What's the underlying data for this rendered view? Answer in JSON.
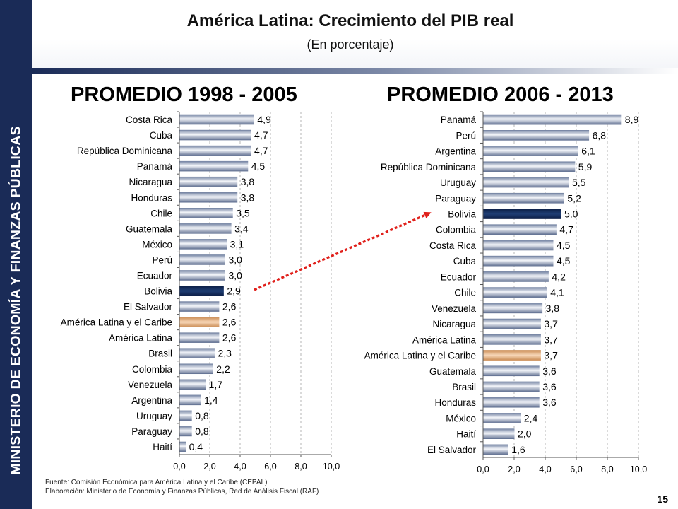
{
  "sidebar": {
    "text": "MINISTERIO DE ECONOMÍA Y FINANZAS PÚBLICAS"
  },
  "header": {
    "title": "América Latina: Crecimiento del PIB real",
    "subtitle": "(En porcentaje)"
  },
  "colors": {
    "default_bar": "#a7b4cb",
    "highlight_bolivia": "#132c5a",
    "highlight_region": "#e6b489",
    "arrow": "#e0201b",
    "sidebar": "#1a2b57"
  },
  "chart_data": [
    {
      "type": "bar",
      "orientation": "horizontal",
      "title": "PROMEDIO 1998 - 2005",
      "xlim": [
        0,
        10
      ],
      "xticks": [
        "0,0",
        "2,0",
        "4,0",
        "6,0",
        "8,0",
        "10,0"
      ],
      "grid": "vertical-dashed",
      "categories": [
        "Costa Rica",
        "Cuba",
        "República Dominicana",
        "Panamá",
        "Nicaragua",
        "Honduras",
        "Chile",
        "Guatemala",
        "México",
        "Perú",
        "Ecuador",
        "Bolivia",
        "El Salvador",
        "América Latina y el Caribe",
        "América Latina",
        "Brasil",
        "Colombia",
        "Venezuela",
        "Argentina",
        "Uruguay",
        "Paraguay",
        "Haití"
      ],
      "values": [
        4.9,
        4.7,
        4.7,
        4.5,
        3.8,
        3.8,
        3.5,
        3.4,
        3.1,
        3.0,
        3.0,
        2.9,
        2.6,
        2.6,
        2.6,
        2.3,
        2.2,
        1.7,
        1.4,
        0.8,
        0.8,
        0.4
      ],
      "value_labels": [
        "4,9",
        "4,7",
        "4,7",
        "4,5",
        "3,8",
        "3,8",
        "3,5",
        "3,4",
        "3,1",
        "3,0",
        "3,0",
        "2,9",
        "2,6",
        "2,6",
        "2,6",
        "2,3",
        "2,2",
        "1,7",
        "1,4",
        "0,8",
        "0,8",
        "0,4"
      ],
      "highlight": {
        "Bolivia": "bolivia",
        "América Latina y el Caribe": "region"
      }
    },
    {
      "type": "bar",
      "orientation": "horizontal",
      "title": "PROMEDIO 2006 - 2013",
      "xlim": [
        0,
        10
      ],
      "xticks": [
        "0,0",
        "2,0",
        "4,0",
        "6,0",
        "8,0",
        "10,0"
      ],
      "grid": "vertical-dashed",
      "categories": [
        "Panamá",
        "Perú",
        "Argentina",
        "República Dominicana",
        "Uruguay",
        "Paraguay",
        "Bolivia",
        "Colombia",
        "Costa Rica",
        "Cuba",
        "Ecuador",
        "Chile",
        "Venezuela",
        "Nicaragua",
        "América Latina",
        "América Latina y el Caribe",
        "Guatemala",
        "Brasil",
        "Honduras",
        "México",
        "Haití",
        "El Salvador"
      ],
      "values": [
        8.9,
        6.8,
        6.1,
        5.9,
        5.5,
        5.2,
        5.0,
        4.7,
        4.5,
        4.5,
        4.2,
        4.1,
        3.8,
        3.7,
        3.7,
        3.7,
        3.6,
        3.6,
        3.6,
        2.4,
        2.0,
        1.6
      ],
      "value_labels": [
        "8,9",
        "6,8",
        "6,1",
        "5,9",
        "5,5",
        "5,2",
        "5,0",
        "4,7",
        "4,5",
        "4,5",
        "4,2",
        "4,1",
        "3,8",
        "3,7",
        "3,7",
        "3,7",
        "3,6",
        "3,6",
        "3,6",
        "2,4",
        "2,0",
        "1,6"
      ],
      "highlight": {
        "Bolivia": "bolivia",
        "América Latina y el Caribe": "region"
      }
    }
  ],
  "footer": {
    "source": "Fuente: Comisión Económica para América Latina y el Caribe (CEPAL)",
    "prepared_by": "Elaboración: Ministerio de Economía y Finanzas Públicas, Red de Análisis Fiscal (RAF)"
  },
  "page_number": "15"
}
